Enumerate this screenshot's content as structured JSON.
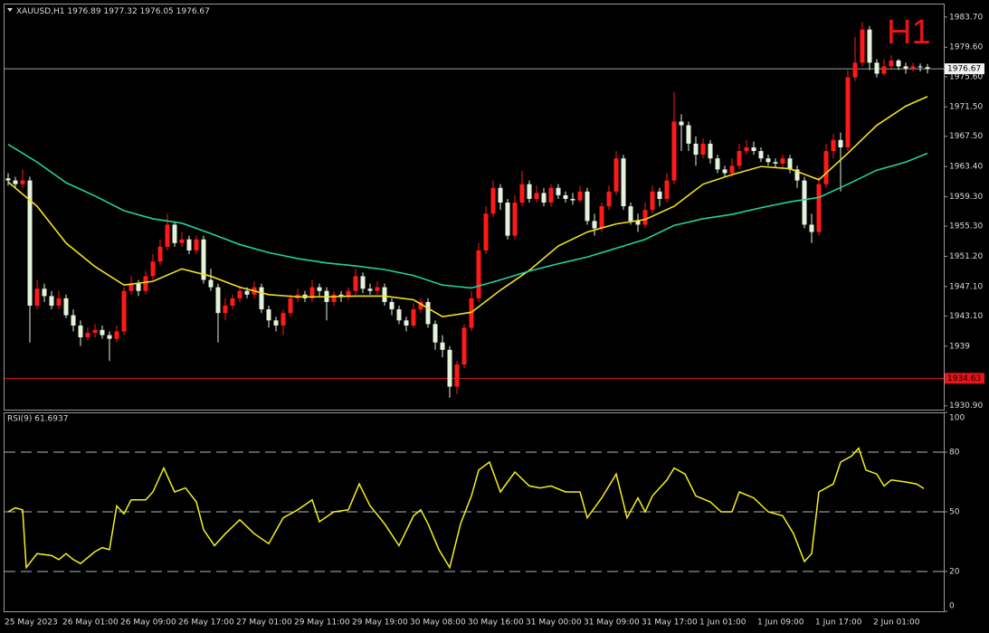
{
  "chart_data": [
    {
      "type": "candlestick",
      "symbol": "XAUUSD,H1",
      "timeframe_label": "H1",
      "up_color": "#ff1a1a",
      "down_color": "#e4f2dc",
      "categories": [
        "25 May 2023",
        null,
        null,
        null,
        null,
        null,
        null,
        null,
        "26 May 01:00",
        null,
        null,
        null,
        null,
        null,
        null,
        null,
        "26 May 09:00",
        null,
        null,
        null,
        null,
        null,
        null,
        null,
        "26 May 17:00",
        null,
        null,
        null,
        null,
        null,
        null,
        null,
        "27 May 01:00",
        null,
        null,
        null,
        null,
        null,
        null,
        null,
        "29 May 11:00",
        null,
        null,
        null,
        null,
        null,
        null,
        null,
        "29 May 19:00",
        null,
        null,
        null,
        null,
        null,
        null,
        null,
        "30 May 08:00",
        null,
        null,
        null,
        null,
        null,
        null,
        null,
        "30 May 16:00",
        null,
        null,
        null,
        null,
        null,
        null,
        null,
        "31 May 00:00",
        null,
        null,
        null,
        null,
        null,
        null,
        null,
        "31 May 09:00",
        null,
        null,
        null,
        null,
        null,
        null,
        null,
        "31 May 17:00",
        null,
        null,
        null,
        null,
        null,
        null,
        null,
        "1 Jun 01:00",
        null,
        null,
        null,
        null,
        null,
        null,
        null,
        "1 Jun 09:00",
        null,
        null,
        null,
        null,
        null,
        null,
        null,
        "1 Jun 17:00",
        null,
        null,
        null,
        null,
        null,
        null,
        null,
        "2 Jun 01:00",
        null,
        null,
        null,
        null,
        null,
        null,
        null
      ],
      "open": [
        1961.8,
        1961.5,
        1961.0,
        1961.5,
        1944.5,
        1946.8,
        1945.8,
        1944.5,
        1945.5,
        1943.2,
        1941.8,
        1940.2,
        1940.8,
        1941.2,
        1940.5,
        1940.0,
        1941.0,
        1946.5,
        1947.5,
        1946.5,
        1948.5,
        1950.5,
        1952.5,
        1955.5,
        1953.0,
        1953.5,
        1952.0,
        1953.5,
        1948.0,
        1947.0,
        1943.5,
        1944.5,
        1945.5,
        1946.5,
        1946.0,
        1947.0,
        1944.0,
        1942.5,
        1941.8,
        1943.5,
        1945.5,
        1946.0,
        1945.5,
        1947.0,
        1946.5,
        1945.0,
        1946.0,
        1945.8,
        1946.5,
        1948.5,
        1946.8,
        1946.5,
        1947.0,
        1945.0,
        1944.0,
        1942.5,
        1941.8,
        1944.0,
        1945.0,
        1942.0,
        1939.5,
        1938.5,
        1933.5,
        1936.5,
        1941.5,
        1945.5,
        1952.0,
        1957.0,
        1960.5,
        1958.5,
        1954.0,
        1958.5,
        1961.0,
        1959.0,
        1959.8,
        1958.5,
        1960.5,
        1959.5,
        1959.0,
        1958.8,
        1960.0,
        1956.0,
        1955.0,
        1958.0,
        1960.0,
        1964.5,
        1958.0,
        1956.0,
        1955.5,
        1957.5,
        1960.0,
        1959.0,
        1961.5,
        1969.5,
        1969.0,
        1966.5,
        1965.0,
        1966.5,
        1964.5,
        1963.0,
        1962.5,
        1963.5,
        1965.5,
        1966.0,
        1965.5,
        1964.5,
        1964.0,
        1963.8,
        1964.5,
        1963.0,
        1961.5,
        1955.5,
        1954.5,
        1961.0,
        1965.5,
        1967.0,
        1966.0,
        1975.5,
        1977.5,
        1982.0,
        1977.5,
        1976.0,
        1977.0,
        1977.8,
        1977.0,
        1976.7,
        1977.0,
        1976.89
      ],
      "high": [
        1962.5,
        1962.0,
        1963.0,
        1962.0,
        1948.0,
        1947.5,
        1946.5,
        1946.5,
        1946.0,
        1944.0,
        1942.5,
        1941.5,
        1942.0,
        1941.8,
        1941.0,
        1941.8,
        1947.0,
        1948.5,
        1948.0,
        1949.2,
        1951.5,
        1953.5,
        1957.0,
        1956.0,
        1954.5,
        1954.0,
        1954.0,
        1954.0,
        1949.5,
        1947.5,
        1945.5,
        1946.0,
        1947.2,
        1947.0,
        1947.8,
        1947.5,
        1944.5,
        1943.0,
        1944.0,
        1946.0,
        1946.8,
        1946.5,
        1948.0,
        1947.5,
        1947.0,
        1946.5,
        1946.5,
        1947.0,
        1949.5,
        1949.0,
        1947.5,
        1947.8,
        1947.5,
        1945.5,
        1944.5,
        1943.0,
        1944.8,
        1945.5,
        1945.5,
        1942.5,
        1940.5,
        1939.0,
        1937.0,
        1942.0,
        1946.5,
        1953.0,
        1958.0,
        1961.5,
        1961.0,
        1959.0,
        1959.5,
        1962.8,
        1961.5,
        1960.8,
        1960.5,
        1961.0,
        1961.0,
        1960.0,
        1959.8,
        1960.8,
        1960.5,
        1957.0,
        1958.5,
        1960.8,
        1965.5,
        1965.0,
        1958.5,
        1957.0,
        1958.5,
        1960.8,
        1960.5,
        1962.5,
        1973.5,
        1970.5,
        1969.5,
        1967.5,
        1967.2,
        1967.0,
        1965.0,
        1963.5,
        1964.5,
        1966.5,
        1967.0,
        1966.8,
        1966.0,
        1965.0,
        1964.5,
        1965.0,
        1965.0,
        1963.5,
        1962.0,
        1957.0,
        1962.0,
        1966.5,
        1967.8,
        1968.0,
        1976.5,
        1981.0,
        1983.0,
        1982.5,
        1978.0,
        1978.0,
        1978.5,
        1978.0,
        1977.5,
        1977.5,
        1977.4,
        1977.32
      ],
      "low": [
        1960.8,
        1960.5,
        1960.5,
        1939.5,
        1944.0,
        1945.0,
        1944.0,
        1944.0,
        1942.8,
        1941.0,
        1939.0,
        1939.8,
        1940.2,
        1940.0,
        1937.0,
        1939.5,
        1940.5,
        1946.0,
        1945.8,
        1946.0,
        1948.0,
        1950.0,
        1952.0,
        1952.5,
        1952.5,
        1951.5,
        1951.5,
        1947.5,
        1946.5,
        1939.5,
        1942.5,
        1944.0,
        1945.0,
        1945.5,
        1945.5,
        1943.5,
        1941.5,
        1941.0,
        1940.5,
        1943.0,
        1945.0,
        1945.0,
        1945.0,
        1945.8,
        1942.5,
        1944.5,
        1945.0,
        1945.2,
        1946.0,
        1946.2,
        1946.0,
        1946.0,
        1944.5,
        1943.2,
        1942.0,
        1941.0,
        1941.5,
        1943.5,
        1941.5,
        1938.5,
        1937.5,
        1932.0,
        1932.5,
        1936.0,
        1941.0,
        1945.0,
        1951.5,
        1956.5,
        1957.5,
        1953.5,
        1953.5,
        1958.0,
        1958.5,
        1958.5,
        1958.0,
        1958.0,
        1959.0,
        1958.5,
        1958.2,
        1958.5,
        1955.5,
        1954.0,
        1954.5,
        1957.5,
        1959.5,
        1957.5,
        1955.5,
        1954.5,
        1955.0,
        1957.0,
        1958.0,
        1958.5,
        1961.0,
        1965.5,
        1965.5,
        1963.5,
        1964.5,
        1963.8,
        1962.5,
        1962.0,
        1962.0,
        1963.0,
        1965.0,
        1965.0,
        1964.0,
        1963.5,
        1963.2,
        1963.2,
        1962.5,
        1960.5,
        1955.0,
        1953.0,
        1954.0,
        1960.5,
        1964.5,
        1960.0,
        1965.5,
        1975.0,
        1977.0,
        1976.5,
        1975.5,
        1975.8,
        1976.5,
        1976.5,
        1976.0,
        1976.3,
        1976.3,
        1976.05
      ],
      "close": [
        1961.5,
        1961.0,
        1961.5,
        1944.5,
        1946.8,
        1945.8,
        1944.5,
        1945.5,
        1943.2,
        1941.8,
        1940.2,
        1940.8,
        1941.2,
        1940.5,
        1940.0,
        1941.0,
        1946.5,
        1947.5,
        1946.5,
        1948.5,
        1950.5,
        1952.5,
        1955.5,
        1953.0,
        1953.5,
        1952.0,
        1953.5,
        1948.0,
        1947.0,
        1943.5,
        1944.5,
        1945.5,
        1946.5,
        1946.0,
        1947.0,
        1944.0,
        1942.5,
        1941.8,
        1943.5,
        1945.5,
        1946.0,
        1945.5,
        1947.0,
        1946.5,
        1945.0,
        1946.0,
        1945.8,
        1946.5,
        1948.5,
        1946.8,
        1946.5,
        1947.0,
        1945.0,
        1944.0,
        1942.5,
        1941.8,
        1944.0,
        1945.0,
        1942.0,
        1939.5,
        1938.5,
        1933.5,
        1936.5,
        1941.5,
        1945.5,
        1952.0,
        1957.0,
        1960.5,
        1958.5,
        1954.0,
        1958.5,
        1961.0,
        1959.0,
        1959.8,
        1958.5,
        1960.5,
        1959.5,
        1959.0,
        1958.8,
        1960.0,
        1956.0,
        1955.0,
        1958.0,
        1960.0,
        1964.5,
        1958.0,
        1956.0,
        1955.5,
        1957.5,
        1960.0,
        1959.0,
        1961.5,
        1969.5,
        1969.0,
        1966.5,
        1965.0,
        1966.5,
        1964.5,
        1963.0,
        1962.5,
        1963.5,
        1965.5,
        1966.0,
        1965.5,
        1964.5,
        1964.0,
        1963.8,
        1964.5,
        1963.0,
        1961.5,
        1955.5,
        1954.5,
        1961.0,
        1965.5,
        1967.0,
        1966.0,
        1975.5,
        1977.5,
        1982.0,
        1977.5,
        1976.0,
        1977.0,
        1977.8,
        1977.0,
        1976.7,
        1977.0,
        1976.89,
        1976.67
      ],
      "moving_averages": [
        {
          "color": "#f2e21e",
          "x": [
            0,
            4,
            8,
            12,
            16,
            20,
            24,
            28,
            32,
            36,
            40,
            44,
            48,
            52,
            56,
            60,
            64,
            68,
            72,
            76,
            80,
            84,
            88,
            92,
            96,
            100,
            104,
            108,
            112,
            116,
            120,
            124,
            127
          ],
          "values": [
            1961.3,
            1958.0,
            1953.0,
            1949.8,
            1947.3,
            1947.8,
            1949.5,
            1948.5,
            1947.0,
            1946.0,
            1945.7,
            1945.7,
            1945.8,
            1945.8,
            1945.3,
            1943.0,
            1943.6,
            1946.6,
            1949.3,
            1952.6,
            1954.5,
            1955.6,
            1956.2,
            1958.0,
            1961.0,
            1962.3,
            1963.4,
            1963.1,
            1961.6,
            1965.2,
            1969.0,
            1971.6,
            1972.9
          ]
        },
        {
          "color": "#22d39c",
          "x": [
            0,
            4,
            8,
            12,
            16,
            20,
            24,
            28,
            32,
            36,
            40,
            44,
            48,
            52,
            56,
            60,
            64,
            68,
            72,
            76,
            80,
            84,
            88,
            92,
            96,
            100,
            104,
            108,
            112,
            116,
            120,
            124,
            127
          ],
          "values": [
            1966.4,
            1964.0,
            1961.2,
            1959.4,
            1957.4,
            1956.3,
            1955.7,
            1954.3,
            1952.8,
            1951.7,
            1950.9,
            1950.3,
            1949.9,
            1949.4,
            1948.6,
            1947.3,
            1946.9,
            1948.0,
            1949.2,
            1950.2,
            1951.1,
            1952.3,
            1953.5,
            1955.4,
            1956.3,
            1956.9,
            1957.8,
            1958.6,
            1959.2,
            1961.0,
            1962.9,
            1964.0,
            1965.2
          ]
        }
      ],
      "hlines": [
        {
          "value": 1976.67,
          "color": "#8da0a8"
        },
        {
          "value": 1934.63,
          "color": "#e8141a"
        }
      ],
      "ylim": [
        1930.5,
        1985.4
      ],
      "yticks": [
        {
          "value": 1983.7,
          "label": "1983.70"
        },
        {
          "value": 1979.6,
          "label": "1979.60"
        },
        {
          "value": 1975.6,
          "label": "1975.60"
        },
        {
          "value": 1971.5,
          "label": "1971.50"
        },
        {
          "value": 1967.5,
          "label": "1967.50"
        },
        {
          "value": 1963.4,
          "label": "1963.40"
        },
        {
          "value": 1959.3,
          "label": "1959.30"
        },
        {
          "value": 1955.3,
          "label": "1955.30"
        },
        {
          "value": 1951.2,
          "label": "1951.20"
        },
        {
          "value": 1947.1,
          "label": "1947.10"
        },
        {
          "value": 1943.1,
          "label": "1943.10"
        },
        1939,
        {
          "value": 1930.9,
          "label": "1930.90"
        }
      ]
    },
    {
      "type": "line",
      "label": "RSI(9) 61.6937",
      "color": "#f5f01e",
      "ylim": [
        0,
        100
      ],
      "yticks": [
        0,
        20,
        50,
        80,
        100
      ],
      "levels": [
        20,
        50,
        80
      ],
      "x": [
        0,
        1,
        2,
        2.5,
        4,
        6,
        7,
        8,
        9,
        10,
        12,
        13,
        14,
        15,
        16,
        17,
        19,
        20,
        21.5,
        23,
        24.5,
        26,
        27,
        28.5,
        30,
        32,
        34,
        36,
        38,
        40,
        42,
        43,
        45,
        47,
        48.5,
        50,
        52,
        54,
        56,
        57,
        58,
        59.5,
        61,
        62.5,
        64,
        65,
        66.5,
        68,
        70,
        72,
        73.5,
        75,
        77,
        79,
        80,
        82,
        84,
        85.5,
        87,
        88,
        89,
        91,
        92,
        93.5,
        95,
        97,
        98.5,
        100,
        101,
        103,
        105,
        107,
        108.5,
        110,
        111,
        112,
        114,
        115,
        116.5,
        117.5,
        118.5,
        120,
        121,
        122,
        124,
        125.5,
        126.5
      ],
      "values": [
        50,
        52,
        51,
        22,
        29,
        28,
        26,
        29,
        26,
        24,
        30,
        32,
        31,
        53,
        49,
        56,
        56,
        60,
        72,
        60,
        62,
        55,
        41,
        33,
        39,
        46,
        39,
        34,
        47,
        51,
        56,
        45,
        50,
        51,
        64,
        53,
        44,
        33,
        48,
        51,
        44,
        31,
        22,
        44,
        58,
        71,
        75,
        60,
        70,
        63,
        62,
        63,
        60,
        60,
        47,
        57,
        69,
        47,
        57,
        50,
        58,
        66,
        72,
        69,
        58,
        55,
        50,
        50,
        60,
        57,
        50,
        48,
        39,
        25,
        29,
        60,
        64,
        75,
        78,
        82,
        71,
        69,
        63,
        66,
        65,
        64,
        61.7
      ]
    }
  ]
}
